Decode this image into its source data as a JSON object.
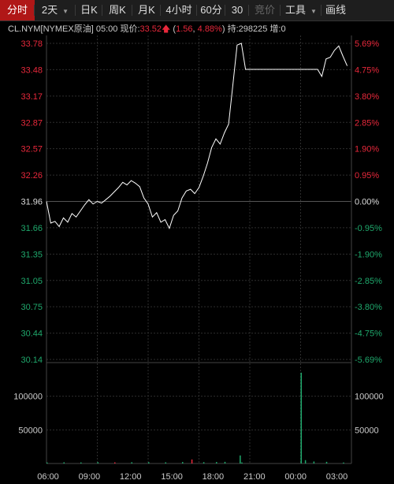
{
  "tabs": [
    {
      "label": "分时",
      "active": true
    },
    {
      "label": "2天",
      "dropdown": true
    },
    {
      "label": "日K"
    },
    {
      "label": "周K"
    },
    {
      "label": "月K"
    },
    {
      "label": "4小时"
    },
    {
      "label": "60分"
    },
    {
      "label": "30"
    },
    {
      "label": "竞价",
      "disabled": true
    },
    {
      "label": "工具",
      "dropdown": true
    },
    {
      "label": "画线"
    }
  ],
  "info": {
    "symbol": "CL.NYM[NYMEX原油]",
    "time": "05:00",
    "price_label": "现价:",
    "price": "33.52",
    "change": "1.56",
    "change_pct": "4.88%",
    "hold_label": "持:",
    "hold": "298225",
    "inc_label": "增:",
    "inc": "0"
  },
  "colors": {
    "up": "#e8283b",
    "down": "#1fa86c",
    "line": "#ffffff",
    "grid": "#2e2e2e"
  },
  "chart_data": {
    "type": "line",
    "price_ticks": [
      "33.78",
      "33.48",
      "33.17",
      "32.87",
      "32.57",
      "32.26",
      "31.96",
      "31.66",
      "31.35",
      "31.05",
      "30.75",
      "30.44",
      "30.14"
    ],
    "pct_ticks": [
      "5.69%",
      "4.75%",
      "3.80%",
      "2.85%",
      "1.90%",
      "0.95%",
      "0.00%",
      "-0.95%",
      "-1.90%",
      "-2.85%",
      "-3.80%",
      "-4.75%",
      "-5.69%"
    ],
    "ylim": [
      30.14,
      33.78
    ],
    "volume_ticks": [
      "100000",
      "50000"
    ],
    "volume_ylim": [
      0,
      150000
    ],
    "x_labels": [
      "06:00",
      "09:00",
      "12:00",
      "15:00",
      "18:00",
      "21:00",
      "00:00",
      "03:00"
    ],
    "x": [
      0,
      0.5,
      1,
      1.5,
      2,
      2.5,
      3,
      3.5,
      4,
      4.5,
      5,
      5.5,
      6,
      6.5,
      7,
      7.5,
      8,
      8.5,
      9,
      9.5,
      10,
      10.5,
      11,
      11.5,
      12,
      12.5,
      13,
      13.5,
      14,
      14.5,
      15,
      15.5,
      16,
      16.5,
      17,
      17.5,
      18,
      18.5,
      19,
      19.5,
      20,
      20.5,
      21,
      21.5,
      22,
      22.5,
      23,
      23.5,
      24,
      24.5,
      25,
      25.5,
      26,
      26.5,
      27,
      27.5,
      28,
      28.5,
      29,
      29.5,
      30,
      30.5,
      31,
      31.5,
      32,
      32.5,
      33,
      33.5,
      34,
      34.5,
      35,
      35.5
    ],
    "y": [
      31.96,
      31.71,
      31.73,
      31.67,
      31.77,
      31.72,
      31.82,
      31.78,
      31.85,
      31.92,
      31.98,
      31.93,
      31.96,
      31.94,
      31.98,
      32.02,
      32.07,
      32.12,
      32.18,
      32.15,
      32.2,
      32.17,
      32.13,
      32.0,
      31.93,
      31.78,
      31.83,
      31.72,
      31.75,
      31.65,
      31.8,
      31.85,
      32.0,
      32.08,
      32.1,
      32.05,
      32.12,
      32.25,
      32.4,
      32.58,
      32.68,
      32.62,
      32.75,
      32.85,
      33.3,
      33.76,
      33.78,
      33.48,
      33.48,
      33.48,
      33.48,
      33.48,
      33.48,
      33.48,
      33.48,
      33.48,
      33.48,
      33.48,
      33.48,
      33.48,
      33.48,
      33.48,
      33.48,
      33.48,
      33.48,
      33.4,
      33.6,
      33.62,
      33.7,
      33.75,
      33.63,
      33.52
    ],
    "volume_bars": [
      {
        "t": 0.0,
        "v": 1500,
        "dir": "down"
      },
      {
        "t": 2.0,
        "v": 1800,
        "dir": "down"
      },
      {
        "t": 4.0,
        "v": 1600,
        "dir": "down"
      },
      {
        "t": 6.0,
        "v": 2000,
        "dir": "down"
      },
      {
        "t": 8.0,
        "v": 1700,
        "dir": "up"
      },
      {
        "t": 10.0,
        "v": 1900,
        "dir": "down"
      },
      {
        "t": 12.0,
        "v": 2000,
        "dir": "down"
      },
      {
        "t": 14.0,
        "v": 1800,
        "dir": "down"
      },
      {
        "t": 16.0,
        "v": 2200,
        "dir": "down"
      },
      {
        "t": 17.1,
        "v": 6000,
        "dir": "up"
      },
      {
        "t": 18.5,
        "v": 2000,
        "dir": "down"
      },
      {
        "t": 20.0,
        "v": 2200,
        "dir": "down"
      },
      {
        "t": 21.0,
        "v": 2500,
        "dir": "down"
      },
      {
        "t": 22.8,
        "v": 12000,
        "dir": "down"
      },
      {
        "t": 23.0,
        "v": 1600,
        "dir": "down"
      },
      {
        "t": 30.0,
        "v": 135000,
        "dir": "down"
      },
      {
        "t": 30.5,
        "v": 5000,
        "dir": "down"
      },
      {
        "t": 31.5,
        "v": 3000,
        "dir": "down"
      },
      {
        "t": 33.0,
        "v": 2500,
        "dir": "down"
      },
      {
        "t": 35.0,
        "v": 1500,
        "dir": "down"
      }
    ]
  }
}
